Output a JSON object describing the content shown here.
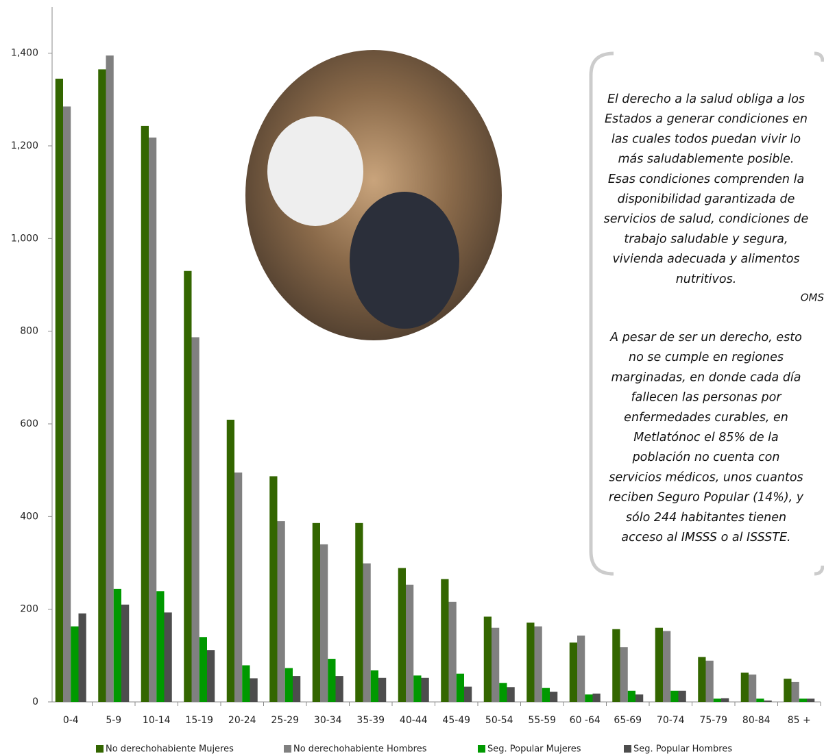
{
  "chart_data": {
    "type": "bar",
    "categories": [
      "0-4",
      "5-9",
      "10-14",
      "15-19",
      "20-24",
      "25-29",
      "30-34",
      "35-39",
      "40-44",
      "45-49",
      "50-54",
      "55-59",
      "60 -64",
      "65-69",
      "70-74",
      "75-79",
      "80-84",
      "85 +"
    ],
    "series": [
      {
        "name": "No derechohabiente  Mujeres",
        "color": "#336600",
        "values": [
          1345,
          1365,
          1243,
          930,
          609,
          487,
          386,
          386,
          289,
          265,
          184,
          171,
          128,
          157,
          160,
          97,
          63,
          50
        ]
      },
      {
        "name": "No derechohabiente  Hombres",
        "color": "#808080",
        "values": [
          1285,
          1395,
          1218,
          787,
          495,
          390,
          340,
          299,
          253,
          216,
          160,
          163,
          143,
          118,
          153,
          89,
          59,
          43
        ]
      },
      {
        "name": "Seg. Popular Mujeres",
        "color": "#009900",
        "values": [
          163,
          244,
          239,
          140,
          79,
          73,
          93,
          68,
          57,
          61,
          41,
          30,
          16,
          24,
          24,
          7,
          7,
          7
        ]
      },
      {
        "name": "Seg. Popular Hombres",
        "color": "#4d4d4d",
        "values": [
          191,
          210,
          193,
          112,
          51,
          56,
          56,
          52,
          52,
          33,
          32,
          22,
          18,
          16,
          24,
          8,
          3,
          7
        ]
      }
    ],
    "ylim": [
      0,
      1500
    ],
    "yticks": [
      0,
      200,
      400,
      600,
      800,
      {
        "value": 1000,
        "label": "1,000"
      },
      {
        "value": 1200,
        "label": "1,200"
      },
      {
        "value": 1400,
        "label": "1,400"
      }
    ],
    "legend": "bottom",
    "quote": [
      "El derecho a la salud obliga a los",
      "Estados a generar condiciones en",
      "las cuales todos puedan vivir lo",
      "más saludablemente posible.",
      "Esas condiciones comprenden la",
      "disponibilidad garantizada de",
      "servicios de salud, condiciones de",
      "trabajo saludable y segura,",
      "vivienda adecuada y alimentos",
      "nutritivos."
    ],
    "quote_source": "OMS",
    "note": [
      "A pesar de ser un derecho, esto",
      "no se cumple en regiones",
      "marginadas, en donde cada día",
      "fallecen las personas por",
      "enfermedades curables, en",
      "Metlatónoc el 85% de la",
      "población no cuenta con",
      "servicios médicos, unos cuantos",
      "reciben Seguro Popular (14%), y",
      "sólo 244 habitantes tienen",
      "acceso al IMSSS o al ISSSTE."
    ]
  }
}
